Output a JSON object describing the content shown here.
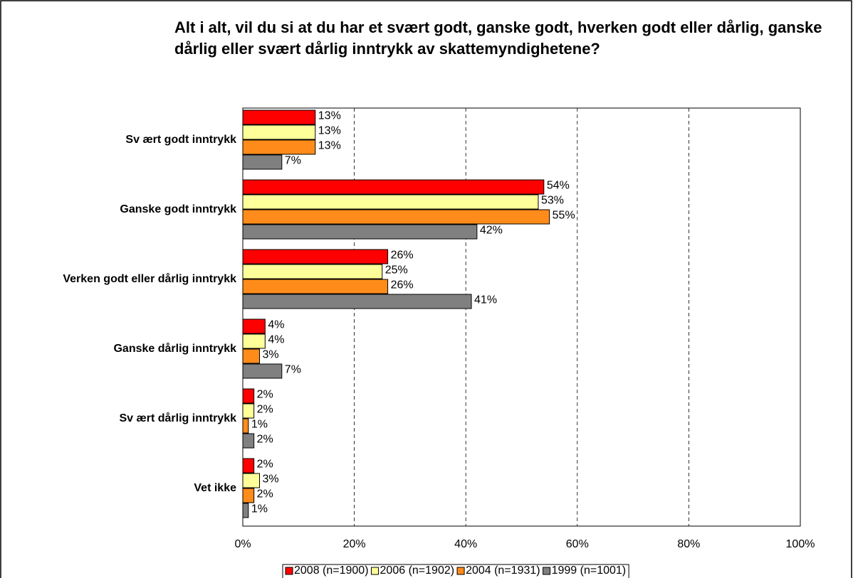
{
  "chart_data": {
    "type": "bar",
    "orientation": "horizontal",
    "title": "Alt i alt, vil du si at du har et svært godt, ganske godt, hverken godt eller dårlig, ganske dårlig eller svært dårlig inntrykk av skattemyndighetene?",
    "categories": [
      "Sv ært godt inntrykk",
      "Ganske godt inntrykk",
      "Verken godt eller dårlig inntrykk",
      "Ganske dårlig inntrykk",
      "Sv ært dårlig inntrykk",
      "Vet ikke"
    ],
    "series": [
      {
        "name": "2008 (n=1900)",
        "color": "#ff0000",
        "values": [
          13,
          54,
          26,
          4,
          2,
          2
        ],
        "value_labels": [
          "13%",
          "54%",
          "26%",
          "4%",
          "2%",
          "2%"
        ]
      },
      {
        "name": "2006 (n=1902)",
        "color": "#ffff99",
        "values": [
          13,
          53,
          25,
          4,
          2,
          3
        ],
        "value_labels": [
          "13%",
          "53%",
          "25%",
          "4%",
          "2%",
          "3%"
        ]
      },
      {
        "name": "2004 (n=1931)",
        "color": "#ff8c1a",
        "values": [
          13,
          55,
          26,
          3,
          1,
          2
        ],
        "value_labels": [
          "13%",
          "55%",
          "26%",
          "3%",
          "1%",
          "2%"
        ]
      },
      {
        "name": "1999 (n=1001)",
        "color": "#808080",
        "values": [
          7,
          42,
          41,
          7,
          2,
          1
        ],
        "value_labels": [
          "7%",
          "42%",
          "41%",
          "7%",
          "2%",
          "1%"
        ]
      }
    ],
    "xlim": [
      0,
      100
    ],
    "xticks": [
      {
        "value": 0,
        "label": "0%"
      },
      {
        "value": 20,
        "label": "20%"
      },
      {
        "value": 40,
        "label": "40%"
      },
      {
        "value": 60,
        "label": "60%"
      },
      {
        "value": 80,
        "label": "80%"
      },
      {
        "value": 100,
        "label": "100%"
      }
    ],
    "grid": true,
    "legend": "bottom"
  }
}
